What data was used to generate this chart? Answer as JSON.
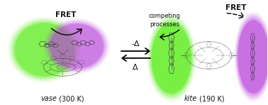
{
  "bg_color": "#ffffff",
  "vase_italic": "vase",
  "vase_normal": " (300 K)",
  "kite_italic": "kite",
  "kite_normal": " (190 K)",
  "fret_left": "FRET",
  "fret_right": "FRET",
  "competing": "competing\nprocesses",
  "delta_top": "-Δ",
  "delta_bot": "Δ",
  "green_color": "#55ee11",
  "purple_color": "#bb44dd",
  "green_alpha": 0.55,
  "purple_alpha": 0.5,
  "text_color": "#111111",
  "arrow_color": "#111111"
}
